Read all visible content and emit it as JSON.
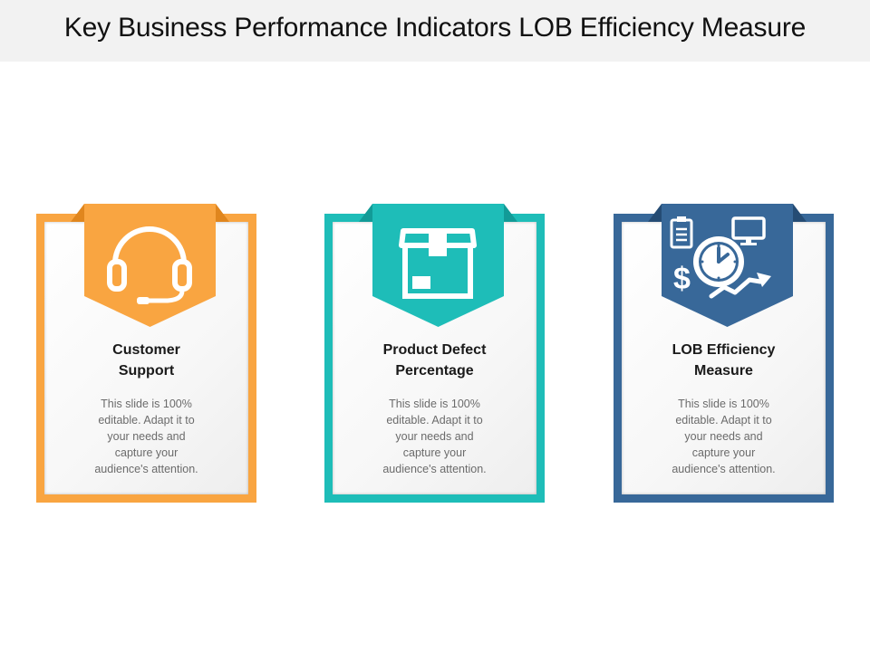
{
  "slide": {
    "title": "Key Business Performance Indicators LOB Efficiency Measure"
  },
  "colors": {
    "orange": "#F9A541",
    "orange_dark": "#E0861E",
    "teal": "#1EBDB8",
    "teal_dark": "#129B97",
    "blue": "#386899",
    "blue_dark": "#254C74",
    "header_bg": "#F2F2F2"
  },
  "cards": [
    {
      "title_line1": "Customer",
      "title_line2": "Support",
      "icon": "headset-icon",
      "desc_lines": [
        "This slide is 100%",
        "editable. Adapt it to",
        "your needs and",
        "capture your",
        "audience's attention."
      ]
    },
    {
      "title_line1": "Product Defect",
      "title_line2": "Percentage",
      "icon": "box-icon",
      "desc_lines": [
        "This slide is 100%",
        "editable. Adapt it to",
        "your needs and",
        "capture your",
        "audience's attention."
      ]
    },
    {
      "title_line1": "LOB Efficiency",
      "title_line2": "Measure",
      "icon": "efficiency-icon",
      "desc_lines": [
        "This slide is 100%",
        "editable. Adapt it to",
        "your needs and",
        "capture your",
        "audience's attention."
      ]
    }
  ]
}
